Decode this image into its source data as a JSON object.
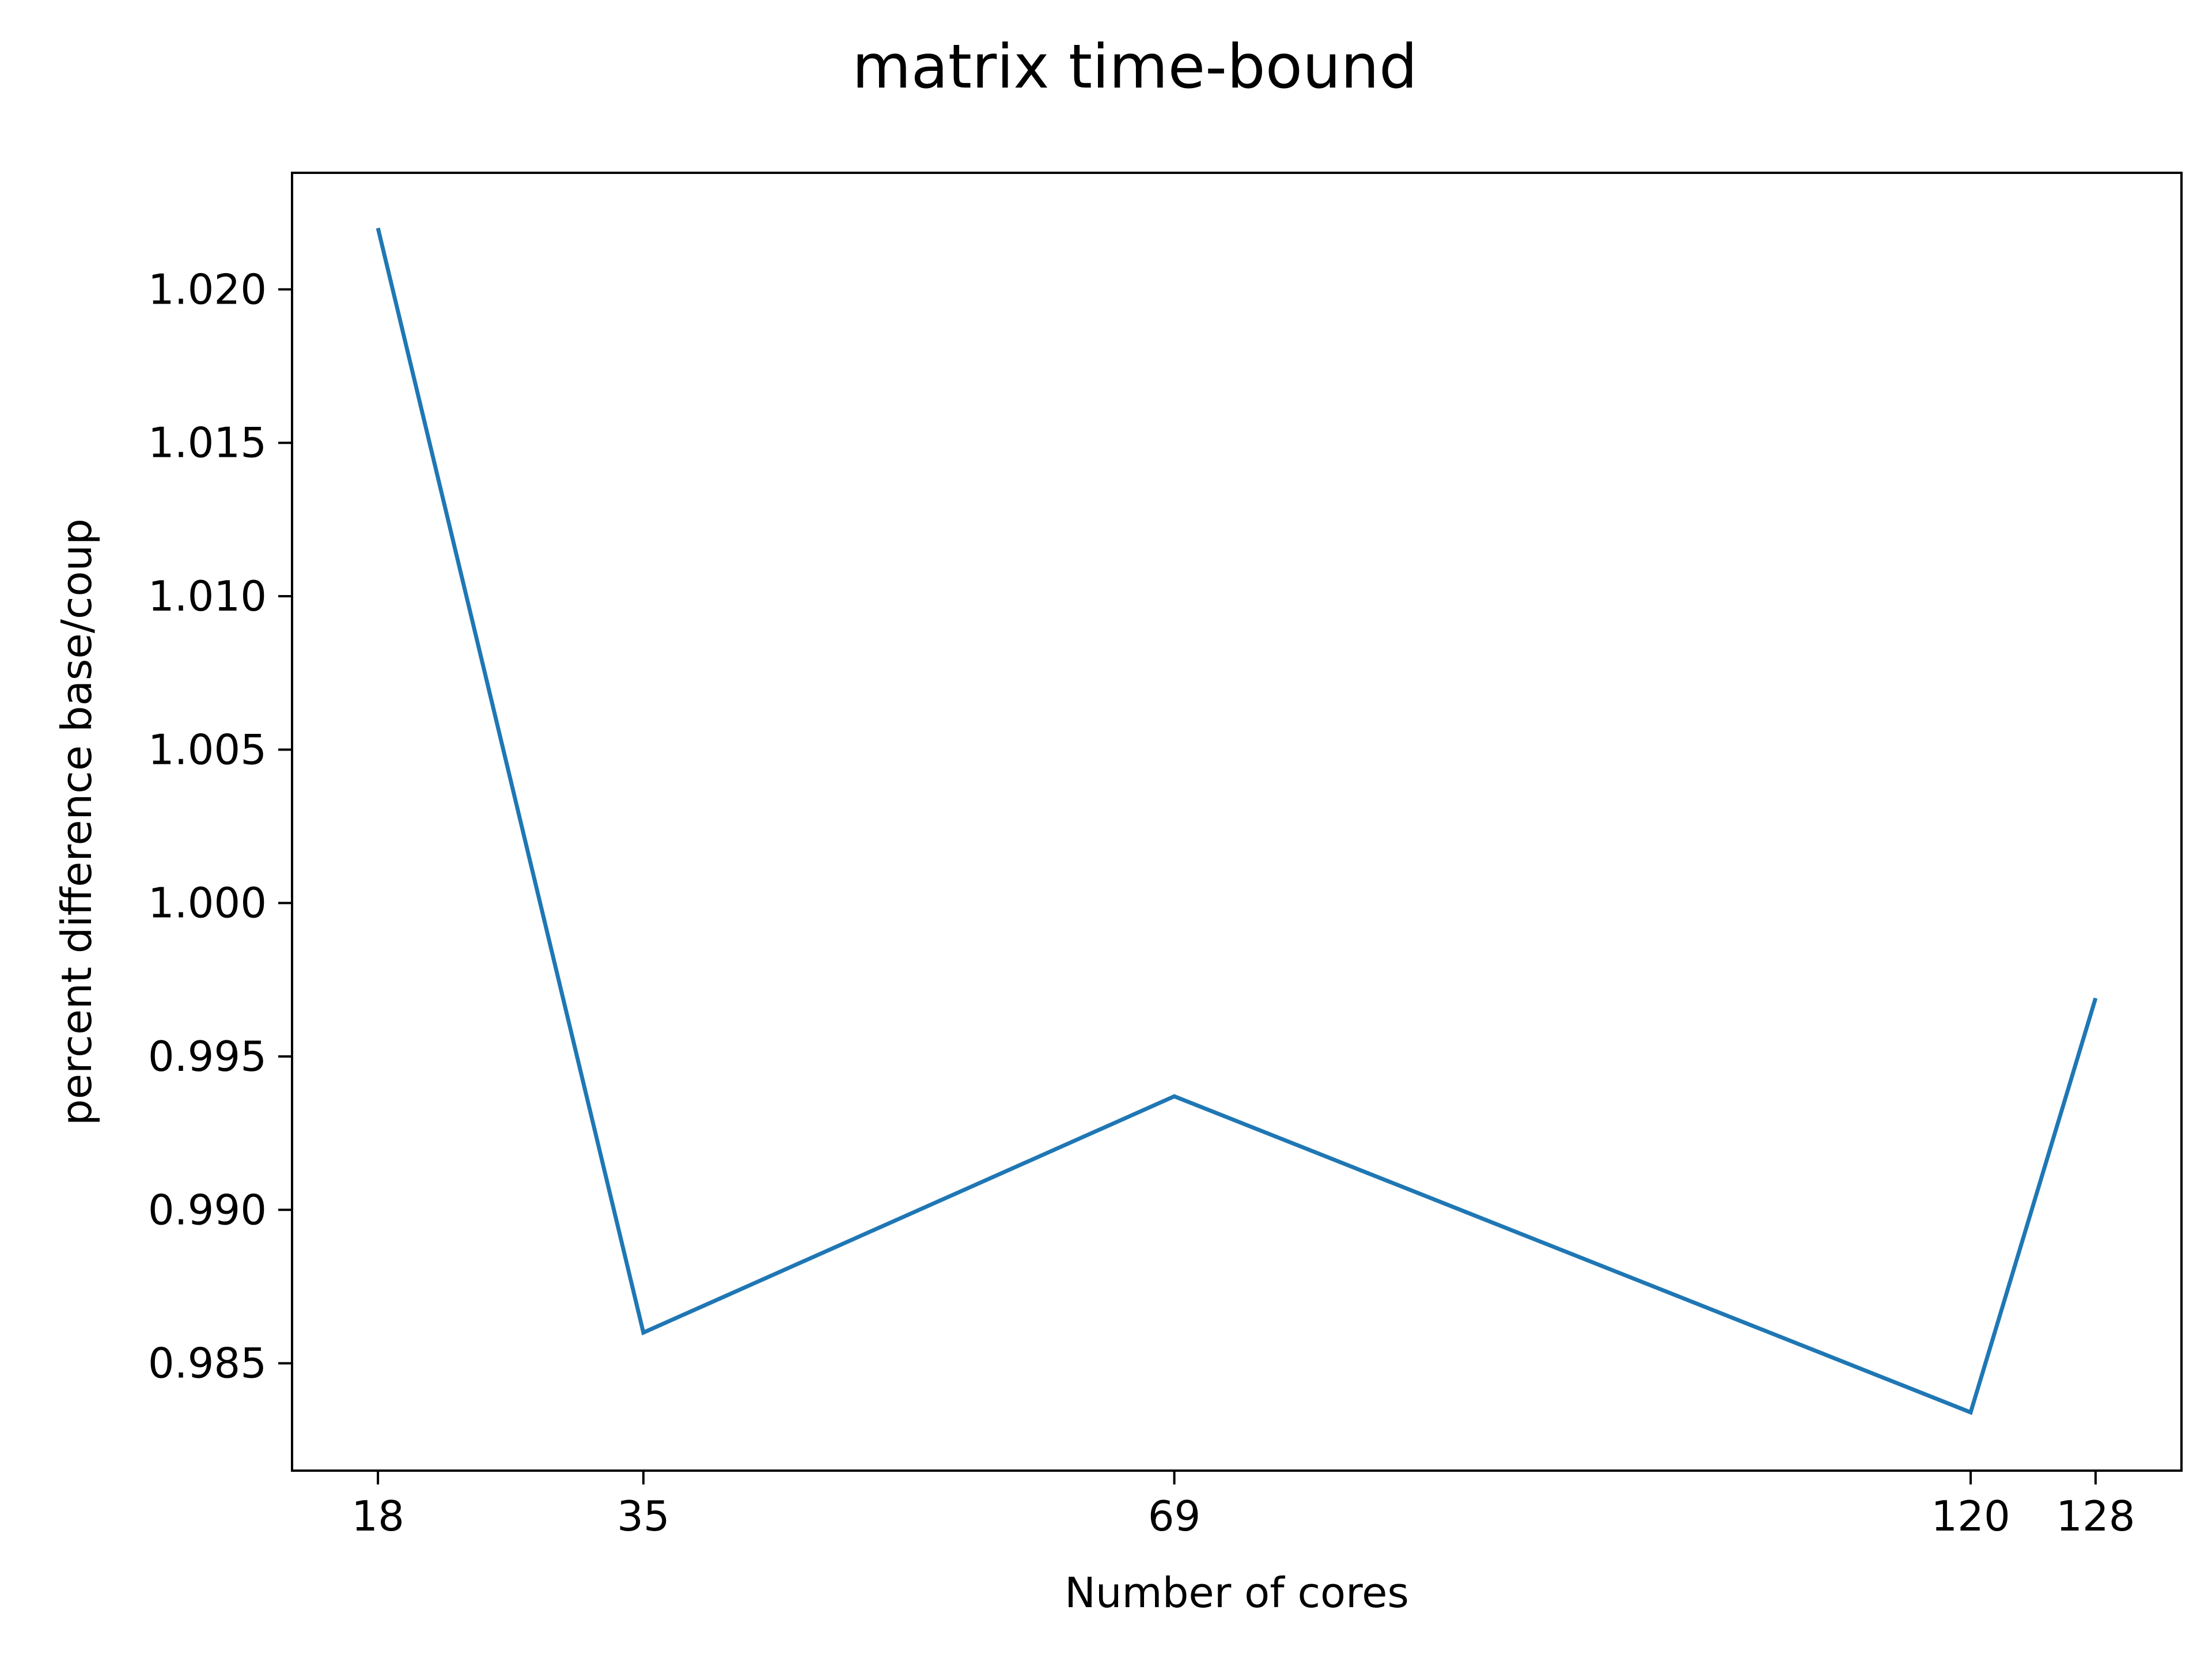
{
  "chart_data": {
    "type": "line",
    "title": "matrix time-bound",
    "xlabel": "Number of cores",
    "ylabel": "percent difference base/coup",
    "x": [
      18,
      35,
      69,
      120,
      128
    ],
    "x_ticks": [
      "18",
      "35",
      "69",
      "120",
      "128"
    ],
    "xlim": [
      12.5,
      133.5
    ],
    "ylim": [
      0.9815,
      1.0238
    ],
    "y_ticks": [
      0.985,
      0.99,
      0.995,
      1.0,
      1.005,
      1.01,
      1.015,
      1.02
    ],
    "y_tick_labels": [
      "0.985",
      "0.990",
      "0.995",
      "1.000",
      "1.005",
      "1.010",
      "1.015",
      "1.020"
    ],
    "series": [
      {
        "values": [
          1.022,
          0.986,
          0.9937,
          0.9834,
          0.9969
        ],
        "color": "#1f77b4"
      }
    ],
    "grid": false,
    "legend": "none"
  }
}
